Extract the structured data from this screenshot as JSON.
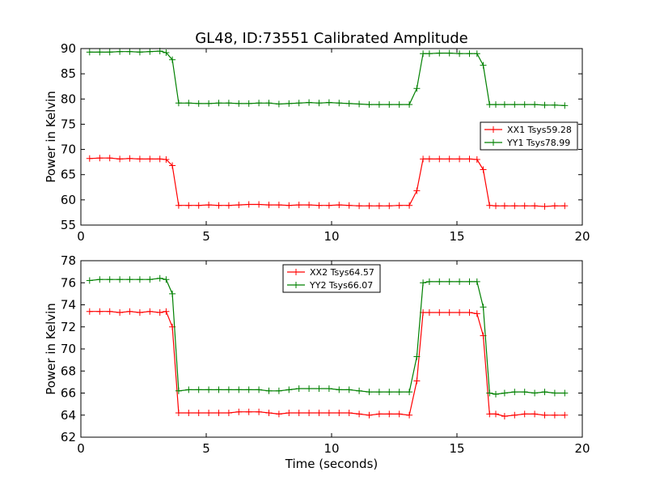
{
  "chart_data": [
    {
      "type": "line",
      "title": "GL48, ID:73551 Calibrated Amplitude",
      "xlabel": "",
      "ylabel": "Power in Kelvin",
      "xlim": [
        0,
        20
      ],
      "ylim": [
        55,
        90
      ],
      "xticks": [
        0,
        5,
        10,
        15,
        20
      ],
      "yticks": [
        55,
        60,
        65,
        70,
        75,
        80,
        85,
        90
      ],
      "legend_position": "center-right",
      "grid": false,
      "series": [
        {
          "name": "XX1 Tsys59.28",
          "color": "#ff0000",
          "x": [
            0.35,
            0.75,
            1.15,
            1.55,
            1.95,
            2.35,
            2.75,
            3.15,
            3.4,
            3.65,
            3.9,
            4.3,
            4.7,
            5.1,
            5.5,
            5.9,
            6.3,
            6.7,
            7.1,
            7.5,
            7.9,
            8.3,
            8.7,
            9.1,
            9.5,
            9.9,
            10.3,
            10.7,
            11.1,
            11.5,
            11.9,
            12.3,
            12.7,
            13.1,
            13.4,
            13.65,
            13.9,
            14.3,
            14.7,
            15.1,
            15.5,
            15.8,
            16.05,
            16.3,
            16.55,
            16.9,
            17.3,
            17.7,
            18.1,
            18.5,
            18.9,
            19.3
          ],
          "values": [
            68.2,
            68.3,
            68.3,
            68.1,
            68.2,
            68.1,
            68.1,
            68.1,
            68.0,
            66.8,
            58.9,
            58.9,
            58.9,
            59.0,
            58.9,
            58.9,
            59.0,
            59.1,
            59.1,
            59.0,
            59.0,
            58.9,
            59.0,
            59.0,
            58.9,
            58.9,
            59.0,
            58.9,
            58.8,
            58.8,
            58.8,
            58.8,
            58.9,
            58.9,
            61.8,
            68.1,
            68.1,
            68.1,
            68.1,
            68.1,
            68.1,
            68.0,
            66.0,
            58.9,
            58.8,
            58.8,
            58.8,
            58.8,
            58.8,
            58.7,
            58.8,
            58.8
          ]
        },
        {
          "name": "YY1 Tsys78.99",
          "color": "#008000",
          "x": [
            0.35,
            0.75,
            1.15,
            1.55,
            1.95,
            2.35,
            2.75,
            3.15,
            3.4,
            3.65,
            3.9,
            4.3,
            4.7,
            5.1,
            5.5,
            5.9,
            6.3,
            6.7,
            7.1,
            7.5,
            7.9,
            8.3,
            8.7,
            9.1,
            9.5,
            9.9,
            10.3,
            10.7,
            11.1,
            11.5,
            11.9,
            12.3,
            12.7,
            13.1,
            13.4,
            13.65,
            13.9,
            14.3,
            14.7,
            15.1,
            15.5,
            15.8,
            16.05,
            16.3,
            16.55,
            16.9,
            17.3,
            17.7,
            18.1,
            18.5,
            18.9,
            19.3
          ],
          "values": [
            89.3,
            89.3,
            89.3,
            89.4,
            89.4,
            89.3,
            89.4,
            89.5,
            89.2,
            87.8,
            79.2,
            79.2,
            79.1,
            79.1,
            79.2,
            79.2,
            79.1,
            79.1,
            79.2,
            79.2,
            79.0,
            79.1,
            79.2,
            79.3,
            79.2,
            79.3,
            79.2,
            79.1,
            79.0,
            78.9,
            78.9,
            78.9,
            78.9,
            78.9,
            82.1,
            89.0,
            89.0,
            89.1,
            89.1,
            89.0,
            89.0,
            89.0,
            86.7,
            78.9,
            78.9,
            78.9,
            78.9,
            78.9,
            78.9,
            78.8,
            78.8,
            78.7
          ]
        }
      ]
    },
    {
      "type": "line",
      "title": "",
      "xlabel": "Time (seconds)",
      "ylabel": "Power in Kelvin",
      "xlim": [
        0,
        20
      ],
      "ylim": [
        62,
        78
      ],
      "xticks": [
        0,
        5,
        10,
        15,
        20
      ],
      "yticks": [
        62,
        64,
        66,
        68,
        70,
        72,
        74,
        76,
        78
      ],
      "legend_position": "top-center",
      "grid": false,
      "series": [
        {
          "name": "XX2 Tsys64.57",
          "color": "#ff0000",
          "x": [
            0.35,
            0.75,
            1.15,
            1.55,
            1.95,
            2.35,
            2.75,
            3.15,
            3.4,
            3.65,
            3.9,
            4.3,
            4.7,
            5.1,
            5.5,
            5.9,
            6.3,
            6.7,
            7.1,
            7.5,
            7.9,
            8.3,
            8.7,
            9.1,
            9.5,
            9.9,
            10.3,
            10.7,
            11.1,
            11.5,
            11.9,
            12.3,
            12.7,
            13.1,
            13.4,
            13.65,
            13.9,
            14.3,
            14.7,
            15.1,
            15.5,
            15.8,
            16.05,
            16.3,
            16.55,
            16.9,
            17.3,
            17.7,
            18.1,
            18.5,
            18.9,
            19.3
          ],
          "values": [
            73.4,
            73.4,
            73.4,
            73.3,
            73.4,
            73.3,
            73.4,
            73.3,
            73.4,
            72.0,
            64.2,
            64.2,
            64.2,
            64.2,
            64.2,
            64.2,
            64.3,
            64.3,
            64.3,
            64.2,
            64.1,
            64.2,
            64.2,
            64.2,
            64.2,
            64.2,
            64.2,
            64.2,
            64.1,
            64.0,
            64.1,
            64.1,
            64.1,
            64.0,
            67.1,
            73.3,
            73.3,
            73.3,
            73.3,
            73.3,
            73.3,
            73.2,
            71.2,
            64.1,
            64.1,
            63.9,
            64.0,
            64.1,
            64.1,
            64.0,
            64.0,
            64.0
          ]
        },
        {
          "name": "YY2 Tsys66.07",
          "color": "#008000",
          "x": [
            0.35,
            0.75,
            1.15,
            1.55,
            1.95,
            2.35,
            2.75,
            3.15,
            3.4,
            3.65,
            3.9,
            4.3,
            4.7,
            5.1,
            5.5,
            5.9,
            6.3,
            6.7,
            7.1,
            7.5,
            7.9,
            8.3,
            8.7,
            9.1,
            9.5,
            9.9,
            10.3,
            10.7,
            11.1,
            11.5,
            11.9,
            12.3,
            12.7,
            13.1,
            13.4,
            13.65,
            13.9,
            14.3,
            14.7,
            15.1,
            15.5,
            15.8,
            16.05,
            16.3,
            16.55,
            16.9,
            17.3,
            17.7,
            18.1,
            18.5,
            18.9,
            19.3
          ],
          "values": [
            76.2,
            76.3,
            76.3,
            76.3,
            76.3,
            76.3,
            76.3,
            76.4,
            76.3,
            75.0,
            66.2,
            66.3,
            66.3,
            66.3,
            66.3,
            66.3,
            66.3,
            66.3,
            66.3,
            66.2,
            66.2,
            66.3,
            66.4,
            66.4,
            66.4,
            66.4,
            66.3,
            66.3,
            66.2,
            66.1,
            66.1,
            66.1,
            66.1,
            66.1,
            69.3,
            76.0,
            76.1,
            76.1,
            76.1,
            76.1,
            76.1,
            76.1,
            73.8,
            66.0,
            65.9,
            66.0,
            66.1,
            66.1,
            66.0,
            66.1,
            66.0,
            66.0
          ]
        }
      ]
    }
  ]
}
